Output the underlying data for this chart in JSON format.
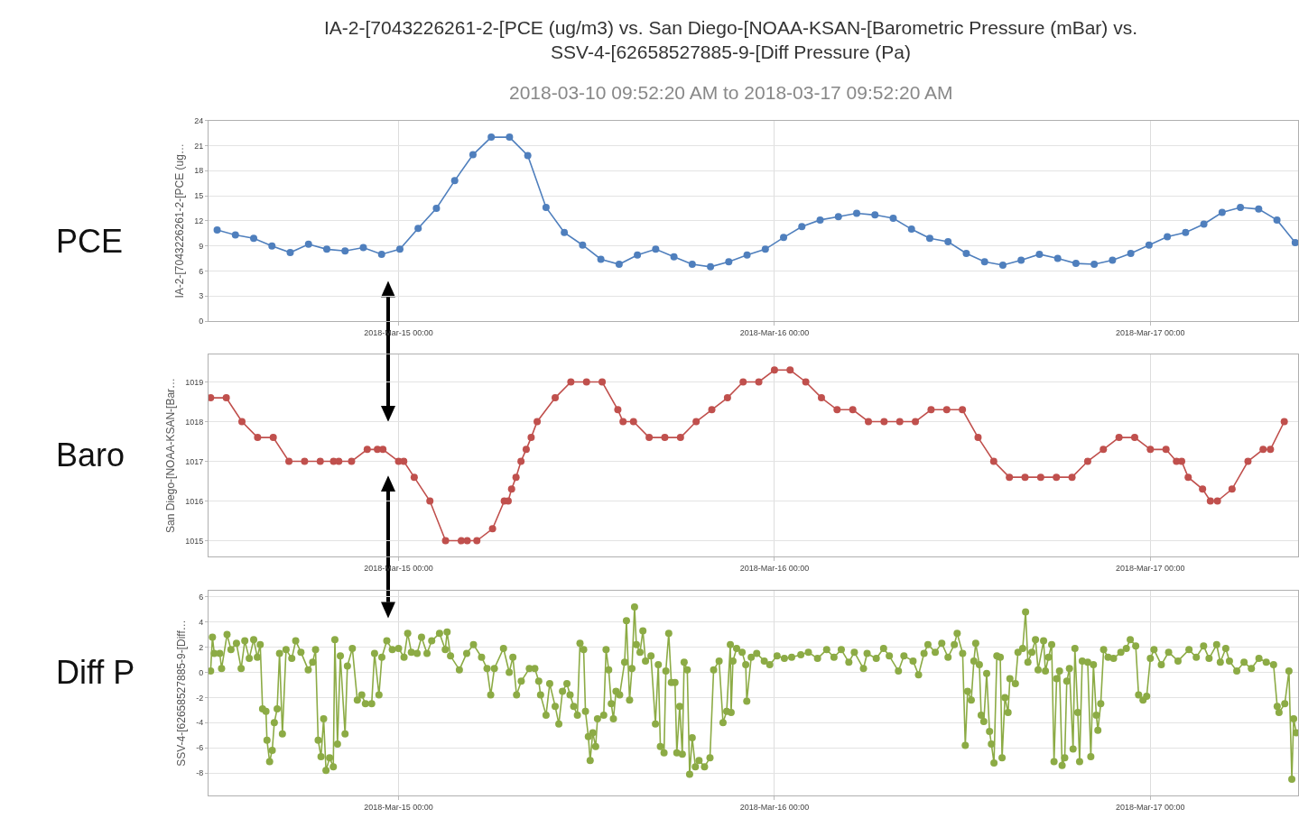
{
  "chart_data": [
    {
      "type": "line",
      "title": "IA-2-[7043226261-2-[PCE (ug/m3) vs. San Diego-[NOAA-KSAN-[Barometric Pressure (mBar) vs.\nSSV-4-[62658527885-9-[Diff Pressure (Pa)",
      "subtitle": "2018-03-10 09:52:20 AM to 2018-03-17 09:52:20 AM",
      "annotations": [
        "PCE"
      ],
      "ylabel": "IA-2-[7043226261-2-[PCE (ug…",
      "color": "#4f7fbd",
      "marker": "circle",
      "grid": true,
      "xlim": [
        "2018-03-14T11:52",
        "2018-03-17T09:27"
      ],
      "xticks": [
        {
          "value": "2018-03-15T00:00",
          "label": "2018-Mar-15 00:00"
        },
        {
          "value": "2018-03-16T00:00",
          "label": "2018-Mar-16 00:00"
        },
        {
          "value": "2018-03-17T00:00",
          "label": "2018-Mar-17 00:00"
        }
      ],
      "ylim": [
        0,
        24
      ],
      "yticks": [
        0,
        3,
        6,
        9,
        12,
        15,
        18,
        21,
        24
      ],
      "x": [
        "2018-03-14T12:25",
        "2018-03-14T13:35",
        "2018-03-14T14:45",
        "2018-03-14T15:55",
        "2018-03-14T17:05",
        "2018-03-14T18:15",
        "2018-03-14T19:25",
        "2018-03-14T20:35",
        "2018-03-14T21:45",
        "2018-03-14T22:55",
        "2018-03-15T00:05",
        "2018-03-15T01:15",
        "2018-03-15T02:25",
        "2018-03-15T03:35",
        "2018-03-15T04:45",
        "2018-03-15T05:55",
        "2018-03-15T07:05",
        "2018-03-15T08:15",
        "2018-03-15T09:25",
        "2018-03-15T10:35",
        "2018-03-15T11:45",
        "2018-03-15T12:55",
        "2018-03-15T14:05",
        "2018-03-15T15:15",
        "2018-03-15T16:25",
        "2018-03-15T17:35",
        "2018-03-15T18:45",
        "2018-03-15T19:55",
        "2018-03-15T21:05",
        "2018-03-15T22:15",
        "2018-03-15T23:25",
        "2018-03-16T00:35",
        "2018-03-16T01:45",
        "2018-03-16T02:55",
        "2018-03-16T04:05",
        "2018-03-16T05:15",
        "2018-03-16T06:25",
        "2018-03-16T07:35",
        "2018-03-16T08:45",
        "2018-03-16T09:55",
        "2018-03-16T11:05",
        "2018-03-16T12:15",
        "2018-03-16T13:25",
        "2018-03-16T14:35",
        "2018-03-16T15:45",
        "2018-03-16T16:55",
        "2018-03-16T18:05",
        "2018-03-16T19:15",
        "2018-03-16T20:25",
        "2018-03-16T21:35",
        "2018-03-16T22:45",
        "2018-03-16T23:55",
        "2018-03-17T01:05",
        "2018-03-17T02:15",
        "2018-03-17T03:25",
        "2018-03-17T04:35",
        "2018-03-17T05:45",
        "2018-03-17T06:55",
        "2018-03-17T08:05",
        "2018-03-17T09:15"
      ],
      "values": [
        10.9,
        10.3,
        9.9,
        9.0,
        8.2,
        9.2,
        8.6,
        8.4,
        8.8,
        8.0,
        8.6,
        11.1,
        13.5,
        16.8,
        19.9,
        22.0,
        22.0,
        19.8,
        13.6,
        10.6,
        9.1,
        7.4,
        6.8,
        7.9,
        8.6,
        7.7,
        6.8,
        6.5,
        7.1,
        7.9,
        8.6,
        10.0,
        11.3,
        12.1,
        12.5,
        12.9,
        12.7,
        12.3,
        11.0,
        9.9,
        9.5,
        8.1,
        7.1,
        6.7,
        7.3,
        8.0,
        7.5,
        6.9,
        6.8,
        7.3,
        8.1,
        9.1,
        10.1,
        10.6,
        11.6,
        13.0,
        13.6,
        13.4,
        12.1,
        9.4
      ]
    },
    {
      "type": "line",
      "annotations": [
        "Baro"
      ],
      "ylabel": "San Diego-[NOAA-KSAN-[Bar…",
      "color": "#c0504d",
      "marker": "circle",
      "grid": true,
      "xlim": [
        "2018-03-14T11:52",
        "2018-03-17T09:27"
      ],
      "xticks": [
        {
          "value": "2018-03-15T00:00",
          "label": "2018-Mar-15 00:00"
        },
        {
          "value": "2018-03-16T00:00",
          "label": "2018-Mar-16 00:00"
        },
        {
          "value": "2018-03-17T00:00",
          "label": "2018-Mar-17 00:00"
        }
      ],
      "ylim": [
        1014.6,
        1019.7
      ],
      "yticks": [
        1015,
        1016,
        1017,
        1018,
        1019
      ],
      "x": [
        "2018-03-14T12:00",
        "2018-03-14T13:00",
        "2018-03-14T14:00",
        "2018-03-14T15:00",
        "2018-03-14T16:00",
        "2018-03-14T17:00",
        "2018-03-14T18:00",
        "2018-03-14T19:00",
        "2018-03-14T19:51",
        "2018-03-14T20:11",
        "2018-03-14T21:00",
        "2018-03-14T22:00",
        "2018-03-14T22:39",
        "2018-03-14T23:00",
        "2018-03-15T00:00",
        "2018-03-15T00:20",
        "2018-03-15T01:00",
        "2018-03-15T02:00",
        "2018-03-15T03:00",
        "2018-03-15T04:00",
        "2018-03-15T04:23",
        "2018-03-15T05:00",
        "2018-03-15T06:00",
        "2018-03-15T06:45",
        "2018-03-15T07:00",
        "2018-03-15T07:13",
        "2018-03-15T07:30",
        "2018-03-15T07:49",
        "2018-03-15T08:09",
        "2018-03-15T08:28",
        "2018-03-15T08:51",
        "2018-03-15T10:00",
        "2018-03-15T11:00",
        "2018-03-15T12:00",
        "2018-03-15T13:00",
        "2018-03-15T14:00",
        "2018-03-15T14:20",
        "2018-03-15T15:00",
        "2018-03-15T16:00",
        "2018-03-15T17:00",
        "2018-03-15T18:00",
        "2018-03-15T19:00",
        "2018-03-15T20:00",
        "2018-03-15T21:00",
        "2018-03-15T22:00",
        "2018-03-15T23:00",
        "2018-03-16T00:00",
        "2018-03-16T01:00",
        "2018-03-16T02:00",
        "2018-03-16T03:00",
        "2018-03-16T04:00",
        "2018-03-16T05:00",
        "2018-03-16T06:00",
        "2018-03-16T07:00",
        "2018-03-16T08:00",
        "2018-03-16T09:00",
        "2018-03-16T10:00",
        "2018-03-16T11:00",
        "2018-03-16T12:00",
        "2018-03-16T13:00",
        "2018-03-16T14:00",
        "2018-03-16T15:00",
        "2018-03-16T16:00",
        "2018-03-16T17:00",
        "2018-03-16T18:00",
        "2018-03-16T19:00",
        "2018-03-16T20:00",
        "2018-03-16T21:00",
        "2018-03-16T22:00",
        "2018-03-16T23:00",
        "2018-03-17T00:00",
        "2018-03-17T01:00",
        "2018-03-17T01:40",
        "2018-03-17T02:00",
        "2018-03-17T02:25",
        "2018-03-17T03:20",
        "2018-03-17T03:50",
        "2018-03-17T04:17",
        "2018-03-17T05:13",
        "2018-03-17T06:14",
        "2018-03-17T07:12",
        "2018-03-17T07:40",
        "2018-03-17T08:33"
      ],
      "values": [
        1018.6,
        1018.6,
        1018.0,
        1017.6,
        1017.6,
        1017.0,
        1017.0,
        1017.0,
        1017.0,
        1017.0,
        1017.0,
        1017.3,
        1017.3,
        1017.3,
        1017.0,
        1017.0,
        1016.6,
        1016.0,
        1015.0,
        1015.0,
        1015.0,
        1015.0,
        1015.3,
        1016.0,
        1016.0,
        1016.3,
        1016.6,
        1017.0,
        1017.3,
        1017.6,
        1018.0,
        1018.6,
        1019.0,
        1019.0,
        1019.0,
        1018.3,
        1018.0,
        1018.0,
        1017.6,
        1017.6,
        1017.6,
        1018.0,
        1018.3,
        1018.6,
        1019.0,
        1019.0,
        1019.3,
        1019.3,
        1019.0,
        1018.6,
        1018.3,
        1018.3,
        1018.0,
        1018.0,
        1018.0,
        1018.0,
        1018.3,
        1018.3,
        1018.3,
        1017.6,
        1017.0,
        1016.6,
        1016.6,
        1016.6,
        1016.6,
        1016.6,
        1017.0,
        1017.3,
        1017.6,
        1017.6,
        1017.3,
        1017.3,
        1017.0,
        1017.0,
        1016.6,
        1016.3,
        1016.0,
        1016.0,
        1016.3,
        1017.0,
        1017.3,
        1017.3,
        1018.0
      ]
    },
    {
      "type": "line",
      "annotations": [
        "Diff P"
      ],
      "ylabel": "SSV-4-[62658527885-9-[Diff…",
      "color": "#8cab45",
      "marker": "circle",
      "grid": true,
      "xlim": [
        "2018-03-14T11:52",
        "2018-03-17T09:27"
      ],
      "xticks": [
        {
          "value": "2018-03-15T00:00",
          "label": "2018-Mar-15 00:00"
        },
        {
          "value": "2018-03-16T00:00",
          "label": "2018-Mar-16 00:00"
        },
        {
          "value": "2018-03-17T00:00",
          "label": "2018-Mar-17 00:00"
        }
      ],
      "ylim": [
        -9.8,
        6.5
      ],
      "yticks": [
        -8,
        -6,
        -4,
        -2,
        0,
        2,
        4,
        6
      ],
      "x": [
        "2018-03-14T12:00",
        "2018-03-14T12:07",
        "2018-03-14T12:14",
        "2018-03-14T12:35",
        "2018-03-14T12:42",
        "2018-03-14T13:03",
        "2018-03-14T13:18",
        "2018-03-14T13:39",
        "2018-03-14T13:57",
        "2018-03-14T14:11",
        "2018-03-14T14:28",
        "2018-03-14T14:45",
        "2018-03-14T14:59",
        "2018-03-14T15:10",
        "2018-03-14T15:19",
        "2018-03-14T15:32",
        "2018-03-14T15:36",
        "2018-03-14T15:46",
        "2018-03-14T15:56",
        "2018-03-14T16:04",
        "2018-03-14T16:15",
        "2018-03-14T16:24",
        "2018-03-14T16:35",
        "2018-03-14T16:49",
        "2018-03-14T17:11",
        "2018-03-14T17:26",
        "2018-03-14T17:46",
        "2018-03-14T18:14",
        "2018-03-14T18:31",
        "2018-03-14T18:42",
        "2018-03-14T18:52",
        "2018-03-14T19:03",
        "2018-03-14T19:13",
        "2018-03-14T19:22",
        "2018-03-14T19:36",
        "2018-03-14T19:50",
        "2018-03-14T19:56",
        "2018-03-14T20:06",
        "2018-03-14T20:17",
        "2018-03-14T20:35",
        "2018-03-14T20:44",
        "2018-03-14T21:03",
        "2018-03-14T21:22",
        "2018-03-14T21:39",
        "2018-03-14T21:53",
        "2018-03-14T22:17",
        "2018-03-14T22:28",
        "2018-03-14T22:45",
        "2018-03-14T22:56",
        "2018-03-14T23:15",
        "2018-03-14T23:36",
        "2018-03-15T00:00",
        "2018-03-15T00:21",
        "2018-03-15T00:35",
        "2018-03-15T00:49",
        "2018-03-15T01:11",
        "2018-03-15T01:28",
        "2018-03-15T01:49",
        "2018-03-15T02:07",
        "2018-03-15T02:37",
        "2018-03-15T02:59",
        "2018-03-15T03:06",
        "2018-03-15T03:19",
        "2018-03-15T03:53",
        "2018-03-15T04:21",
        "2018-03-15T04:47",
        "2018-03-15T05:18",
        "2018-03-15T05:39",
        "2018-03-15T05:53",
        "2018-03-15T06:07",
        "2018-03-15T06:42",
        "2018-03-15T07:04",
        "2018-03-15T07:18",
        "2018-03-15T07:32",
        "2018-03-15T07:50",
        "2018-03-15T08:21",
        "2018-03-15T08:42",
        "2018-03-15T08:57",
        "2018-03-15T09:04",
        "2018-03-15T09:25",
        "2018-03-15T09:39",
        "2018-03-15T10:00",
        "2018-03-15T10:14",
        "2018-03-15T10:28",
        "2018-03-15T10:45",
        "2018-03-15T10:57",
        "2018-03-15T11:11",
        "2018-03-15T11:25",
        "2018-03-15T11:35",
        "2018-03-15T11:49",
        "2018-03-15T11:56",
        "2018-03-15T12:07",
        "2018-03-15T12:14",
        "2018-03-15T12:24",
        "2018-03-15T12:35",
        "2018-03-15T12:42",
        "2018-03-15T13:06",
        "2018-03-15T13:15",
        "2018-03-15T13:25",
        "2018-03-15T13:35",
        "2018-03-15T13:43",
        "2018-03-15T13:53",
        "2018-03-15T14:07",
        "2018-03-15T14:26",
        "2018-03-15T14:33",
        "2018-03-15T14:45",
        "2018-03-15T14:54",
        "2018-03-15T15:04",
        "2018-03-15T15:11",
        "2018-03-15T15:25",
        "2018-03-15T15:36",
        "2018-03-15T15:46",
        "2018-03-15T16:07",
        "2018-03-15T16:24",
        "2018-03-15T16:35",
        "2018-03-15T16:43",
        "2018-03-15T16:57",
        "2018-03-15T17:04",
        "2018-03-15T17:15",
        "2018-03-15T17:25",
        "2018-03-15T17:39",
        "2018-03-15T17:46",
        "2018-03-15T17:57",
        "2018-03-15T18:07",
        "2018-03-15T18:14",
        "2018-03-15T18:26",
        "2018-03-15T18:35",
        "2018-03-15T18:45",
        "2018-03-15T18:57",
        "2018-03-15T19:11",
        "2018-03-15T19:32",
        "2018-03-15T19:53",
        "2018-03-15T20:07",
        "2018-03-15T20:28",
        "2018-03-15T20:43",
        "2018-03-15T20:57",
        "2018-03-15T21:11",
        "2018-03-15T21:14",
        "2018-03-15T21:21",
        "2018-03-15T21:35",
        "2018-03-15T21:56",
        "2018-03-15T22:10",
        "2018-03-15T22:14",
        "2018-03-15T22:31",
        "2018-03-15T22:52",
        "2018-03-15T23:21",
        "2018-03-15T23:42",
        "2018-03-16T00:10",
        "2018-03-16T00:38",
        "2018-03-16T01:06",
        "2018-03-16T01:41",
        "2018-03-16T02:10",
        "2018-03-16T02:45",
        "2018-03-16T03:20",
        "2018-03-16T03:48",
        "2018-03-16T04:16",
        "2018-03-16T04:45",
        "2018-03-16T05:06",
        "2018-03-16T05:41",
        "2018-03-16T05:55",
        "2018-03-16T06:30",
        "2018-03-16T06:58",
        "2018-03-16T07:20",
        "2018-03-16T07:55",
        "2018-03-16T08:16",
        "2018-03-16T08:51",
        "2018-03-16T09:12",
        "2018-03-16T09:33",
        "2018-03-16T09:48",
        "2018-03-16T10:16",
        "2018-03-16T10:41",
        "2018-03-16T11:05",
        "2018-03-16T11:29",
        "2018-03-16T11:40",
        "2018-03-16T12:01",
        "2018-03-16T12:11",
        "2018-03-16T12:20",
        "2018-03-16T12:34",
        "2018-03-16T12:44",
        "2018-03-16T12:51",
        "2018-03-16T13:05",
        "2018-03-16T13:12",
        "2018-03-16T13:22",
        "2018-03-16T13:33",
        "2018-03-16T13:44",
        "2018-03-16T13:51",
        "2018-03-16T14:01",
        "2018-03-16T14:12",
        "2018-03-16T14:25",
        "2018-03-16T14:32",
        "2018-03-16T14:43",
        "2018-03-16T14:55",
        "2018-03-16T15:02",
        "2018-03-16T15:23",
        "2018-03-16T15:33",
        "2018-03-16T15:51",
        "2018-03-16T16:02",
        "2018-03-16T16:11",
        "2018-03-16T16:26",
        "2018-03-16T16:40",
        "2018-03-16T16:50",
        "2018-03-16T17:11",
        "2018-03-16T17:18",
        "2018-03-16T17:30",
        "2018-03-16T17:42",
        "2018-03-16T17:51",
        "2018-03-16T18:01",
        "2018-03-16T18:12",
        "2018-03-16T18:22",
        "2018-03-16T18:32",
        "2018-03-16T18:40",
        "2018-03-16T18:50",
        "2018-03-16T19:04",
        "2018-03-16T19:11",
        "2018-03-16T19:22",
        "2018-03-16T19:29",
        "2018-03-16T19:39",
        "2018-03-16T20:00",
        "2018-03-16T20:12",
        "2018-03-16T20:22",
        "2018-03-16T20:33",
        "2018-03-16T20:39",
        "2018-03-16T20:50",
        "2018-03-16T21:01",
        "2018-03-16T21:18",
        "2018-03-16T21:39",
        "2018-03-16T22:07",
        "2018-03-16T22:28",
        "2018-03-16T22:43",
        "2018-03-16T23:04",
        "2018-03-16T23:15",
        "2018-03-16T23:32",
        "2018-03-16T23:46",
        "2018-03-17T00:00",
        "2018-03-17T00:14",
        "2018-03-17T00:42",
        "2018-03-17T01:10",
        "2018-03-17T01:46",
        "2018-03-17T02:28",
        "2018-03-17T02:56",
        "2018-03-17T03:24",
        "2018-03-17T03:45",
        "2018-03-17T04:14",
        "2018-03-17T04:28",
        "2018-03-17T04:49",
        "2018-03-17T05:03",
        "2018-03-17T05:31",
        "2018-03-17T05:59",
        "2018-03-17T06:27",
        "2018-03-17T06:56",
        "2018-03-17T07:24",
        "2018-03-17T07:52",
        "2018-03-17T08:06",
        "2018-03-17T08:13",
        "2018-03-17T08:35",
        "2018-03-17T08:51",
        "2018-03-17T09:02",
        "2018-03-17T09:09",
        "2018-03-17T09:19"
      ],
      "values": [
        0.1,
        2.8,
        1.5,
        1.5,
        0.3,
        3.0,
        1.8,
        2.3,
        0.3,
        2.5,
        1.1,
        2.6,
        1.2,
        2.2,
        -2.9,
        -3.1,
        -5.4,
        -7.1,
        -6.2,
        -4.0,
        -2.9,
        1.5,
        -4.9,
        1.8,
        1.1,
        2.5,
        1.6,
        0.2,
        0.8,
        1.8,
        -5.4,
        -6.7,
        -3.7,
        -7.8,
        -6.8,
        -7.5,
        2.6,
        -5.7,
        1.3,
        -4.9,
        0.5,
        1.9,
        -2.2,
        -1.8,
        -2.5,
        -2.5,
        1.5,
        -1.8,
        1.2,
        2.5,
        1.8,
        1.9,
        1.2,
        3.1,
        1.6,
        1.5,
        2.8,
        1.5,
        2.5,
        3.1,
        1.8,
        3.2,
        1.3,
        0.2,
        1.5,
        2.2,
        1.2,
        0.3,
        -1.8,
        0.3,
        1.9,
        0.0,
        1.2,
        -1.8,
        -0.7,
        0.3,
        0.3,
        -0.7,
        -1.8,
        -3.4,
        -0.9,
        -2.7,
        -4.1,
        -1.5,
        -0.9,
        -1.8,
        -2.7,
        -3.4,
        2.3,
        1.8,
        -3.1,
        -5.1,
        -7.0,
        -4.8,
        -5.9,
        -3.7,
        -3.4,
        1.8,
        0.2,
        -2.5,
        -3.7,
        -1.5,
        -1.8,
        0.8,
        4.1,
        -2.2,
        0.3,
        5.2,
        2.2,
        1.6,
        3.3,
        0.9,
        1.3,
        -4.1,
        0.6,
        -5.9,
        -6.4,
        0.1,
        3.1,
        -0.8,
        -0.8,
        -6.4,
        -2.7,
        -6.5,
        0.8,
        0.2,
        -8.1,
        -5.2,
        -7.5,
        -7.0,
        -7.5,
        -6.8,
        0.2,
        0.9,
        -4.0,
        -3.1,
        2.2,
        -3.2,
        0.9,
        1.9,
        1.6,
        0.6,
        -2.3,
        1.2,
        1.5,
        0.9,
        0.6,
        1.3,
        1.1,
        1.2,
        1.4,
        1.6,
        1.1,
        1.8,
        1.2,
        1.8,
        0.8,
        1.6,
        0.3,
        1.5,
        1.1,
        1.9,
        1.3,
        0.1,
        1.3,
        0.9,
        -0.2,
        1.5,
        2.2,
        1.6,
        2.3,
        1.2,
        2.2,
        3.1,
        1.5,
        -5.8,
        -1.5,
        -2.2,
        0.9,
        2.3,
        0.6,
        -3.4,
        -3.9,
        -0.1,
        -4.7,
        -5.7,
        -7.2,
        1.3,
        1.2,
        -6.8,
        -2.0,
        -3.2,
        -0.5,
        -0.9,
        1.6,
        1.9,
        4.8,
        0.8,
        1.6,
        2.6,
        0.2,
        2.5,
        0.1,
        1.2,
        2.2,
        -7.1,
        -0.5,
        0.1,
        -7.4,
        -6.8,
        -0.7,
        0.3,
        -6.1,
        1.9,
        -3.2,
        -7.1,
        0.9,
        0.8,
        -6.7,
        0.6,
        -3.4,
        -4.6,
        -2.5,
        1.8,
        1.2,
        1.1,
        1.6,
        1.9,
        2.6,
        2.1,
        -1.8,
        -2.2,
        -1.9,
        1.1,
        1.8,
        0.6,
        1.6,
        0.9,
        1.8,
        1.2,
        2.1,
        1.1,
        2.2,
        0.8,
        1.9,
        0.9,
        0.1,
        0.8,
        0.3,
        1.1,
        0.8,
        0.6,
        -2.7,
        -3.2,
        -2.5,
        0.1,
        -8.5,
        -3.7,
        -4.8
      ]
    }
  ]
}
